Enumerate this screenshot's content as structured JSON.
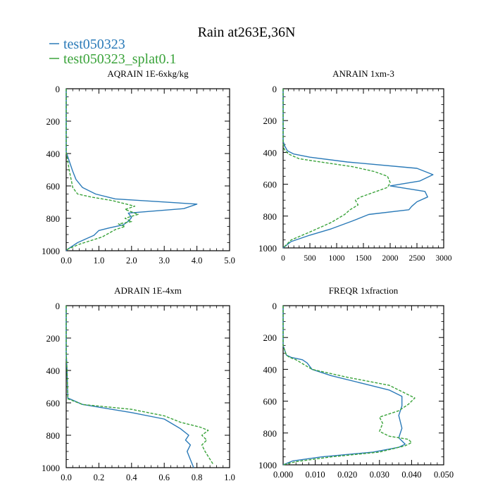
{
  "figure": {
    "title": "Rain at263E,36N",
    "legend": [
      {
        "label": "test050323",
        "color": "#2a7ab8",
        "dash": "solid"
      },
      {
        "label": "test050323_splat0.1",
        "color": "#3aa33a",
        "dash": "dashed"
      }
    ]
  },
  "chart_data": [
    {
      "type": "line",
      "title": "AQRAIN  1E-6xkg/kg",
      "xlim": [
        0,
        5
      ],
      "ylim": [
        0,
        1000
      ],
      "y_inverted": true,
      "xticks": [
        "0.0",
        "1.0",
        "2.0",
        "3.0",
        "4.0",
        "5.0"
      ],
      "yticks": [
        "0",
        "200",
        "400",
        "600",
        "800",
        "1000"
      ],
      "series": [
        {
          "name": "test050323",
          "color": "#2a7ab8",
          "dash": "solid",
          "x": [
            0,
            0,
            0.1,
            0.2,
            0.3,
            0.5,
            0.9,
            1.5,
            4.0,
            3.6,
            1.9,
            2.0,
            1.9,
            1.75,
            1.3,
            1.0,
            0.85,
            0.35,
            0.05,
            0
          ],
          "y": [
            0,
            390,
            450,
            510,
            560,
            610,
            650,
            680,
            712,
            740,
            768,
            795,
            818,
            840,
            860,
            875,
            905,
            950,
            990,
            1000
          ]
        },
        {
          "name": "test050323_splat0.1",
          "color": "#3aa33a",
          "dash": "dashed",
          "x": [
            0,
            0,
            0.05,
            0.1,
            0.15,
            0.2,
            0.35,
            0.8,
            1.4,
            2.1,
            1.8,
            2.2,
            1.8,
            2.0,
            1.6,
            1.8,
            1.5,
            1.1,
            0.4,
            0.05,
            0
          ],
          "y": [
            0,
            390,
            450,
            510,
            560,
            610,
            650,
            670,
            690,
            725,
            745,
            775,
            800,
            820,
            835,
            850,
            870,
            915,
            960,
            990,
            1000
          ]
        }
      ]
    },
    {
      "type": "line",
      "title": "ANRAIN  1xm-3",
      "xlim": [
        0,
        3000
      ],
      "ylim": [
        0,
        1000
      ],
      "y_inverted": true,
      "xticks": [
        "0",
        "500",
        "1000",
        "1500",
        "2000",
        "2500",
        "3000"
      ],
      "yticks": [
        "0",
        "200",
        "400",
        "600",
        "800",
        "1000"
      ],
      "series": [
        {
          "name": "test050323",
          "color": "#2a7ab8",
          "dash": "solid",
          "x": [
            0,
            0,
            30,
            80,
            200,
            500,
            1200,
            2500,
            2800,
            2550,
            2000,
            2650,
            2700,
            2500,
            2400,
            2350,
            1600,
            1300,
            900,
            500,
            150,
            0
          ],
          "y": [
            0,
            330,
            360,
            390,
            410,
            430,
            460,
            500,
            540,
            580,
            610,
            645,
            680,
            710,
            740,
            760,
            790,
            830,
            880,
            920,
            960,
            1000
          ]
        },
        {
          "name": "test050323_splat0.1",
          "color": "#3aa33a",
          "dash": "dashed",
          "x": [
            0,
            0,
            20,
            100,
            300,
            700,
            1300,
            1700,
            1950,
            2000,
            1950,
            1700,
            1450,
            1350,
            1400,
            1250,
            1150,
            900,
            500,
            150,
            0
          ],
          "y": [
            0,
            340,
            380,
            410,
            440,
            460,
            490,
            520,
            550,
            590,
            620,
            650,
            680,
            700,
            730,
            760,
            790,
            840,
            900,
            950,
            1000
          ]
        }
      ]
    },
    {
      "type": "line",
      "title": "ADRAIN  1E-4xm",
      "xlim": [
        0,
        1.0
      ],
      "ylim": [
        0,
        1000
      ],
      "y_inverted": true,
      "xticks": [
        "0.0",
        "0.2",
        "0.4",
        "0.6",
        "0.8",
        "1.0"
      ],
      "yticks": [
        "0",
        "200",
        "400",
        "600",
        "800",
        "1000"
      ],
      "series": [
        {
          "name": "test050323",
          "color": "#2a7ab8",
          "dash": "solid",
          "x": [
            0,
            0,
            0.005,
            0.01,
            0.1,
            0.4,
            0.6,
            0.65,
            0.7,
            0.75,
            0.73,
            0.76,
            0.74,
            0.76,
            0.78
          ],
          "y": [
            0,
            290,
            400,
            570,
            610,
            660,
            700,
            730,
            760,
            800,
            830,
            860,
            900,
            950,
            1000
          ]
        },
        {
          "name": "test050323_splat0.1",
          "color": "#3aa33a",
          "dash": "dashed",
          "x": [
            0,
            0,
            0.005,
            0.01,
            0.1,
            0.4,
            0.6,
            0.7,
            0.82,
            0.87,
            0.83,
            0.86,
            0.83,
            0.85,
            0.9
          ],
          "y": [
            0,
            290,
            400,
            575,
            610,
            640,
            680,
            720,
            750,
            770,
            800,
            830,
            860,
            900,
            980
          ]
        }
      ]
    },
    {
      "type": "line",
      "title": "FREQR  1xfraction",
      "xlim": [
        0,
        0.05
      ],
      "ylim": [
        0,
        1000
      ],
      "y_inverted": true,
      "xticks": [
        "0.000",
        "0.010",
        "0.020",
        "0.030",
        "0.040",
        "0.050"
      ],
      "yticks": [
        "0",
        "200",
        "400",
        "600",
        "800",
        "1000"
      ],
      "series": [
        {
          "name": "test050323",
          "color": "#2a7ab8",
          "dash": "solid",
          "x": [
            0,
            0,
            0.0005,
            0.001,
            0.0025,
            0.006,
            0.0075,
            0.009,
            0.015,
            0.025,
            0.033,
            0.037,
            0.037,
            0.036,
            0.037,
            0.036,
            0.038,
            0.036,
            0.028,
            0.012,
            0.003,
            0
          ],
          "y": [
            0,
            250,
            280,
            310,
            325,
            340,
            360,
            400,
            440,
            490,
            530,
            570,
            630,
            690,
            770,
            830,
            870,
            890,
            920,
            950,
            975,
            1000
          ]
        },
        {
          "name": "test050323_splat0.1",
          "color": "#3aa33a",
          "dash": "dashed",
          "x": [
            0,
            0,
            0.0005,
            0.001,
            0.002,
            0.004,
            0.009,
            0.02,
            0.033,
            0.041,
            0.039,
            0.036,
            0.03,
            0.031,
            0.03,
            0.033,
            0.039,
            0.04,
            0.038,
            0.03,
            0.015,
            0.004,
            0
          ],
          "y": [
            0,
            250,
            280,
            310,
            325,
            340,
            400,
            450,
            500,
            580,
            620,
            660,
            700,
            740,
            790,
            820,
            840,
            860,
            880,
            920,
            950,
            980,
            1000
          ]
        }
      ]
    }
  ]
}
